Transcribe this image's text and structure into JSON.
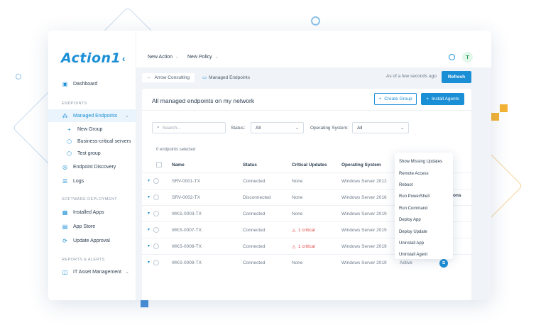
{
  "sidebar": {
    "logo": "Action1",
    "collapse_icon": "chevron-left-icon",
    "items": {
      "dashboard": "Dashboard",
      "section_endpoints": "ENDPOINTS",
      "managed": "Managed Endpoints",
      "new_group": "New Group",
      "business": "Business-critical servers",
      "test_group": "Test group",
      "discovery": "Endpoint Discovery",
      "logs": "Logs",
      "section_software": "SOFTWARE DEPLOYMENT",
      "installed": "Installed Apps",
      "store": "App Store",
      "approval": "Update Approval",
      "section_reports": "REPORTS & ALERTS",
      "asset": "IT Asset Management"
    }
  },
  "topbar": {
    "new_action": "New Action",
    "new_policy": "New Policy",
    "avatar_letter": "T"
  },
  "breadcrumb": {
    "back": "Arrow Consulting",
    "current": "Managed Endpoints"
  },
  "status": {
    "as_of": "As of a few seconds ago",
    "refresh": "Refresh"
  },
  "panel": {
    "title": "All managed endpoints on my network",
    "create_group": "Create Group",
    "install_agents": "Install Agents"
  },
  "filters": {
    "search_placeholder": "Search...",
    "status_label": "Status:",
    "status_value": "All",
    "os_label": "Operating System:",
    "os_value": "All",
    "selected_count": "0 endpoints selected"
  },
  "table": {
    "headers": {
      "name": "Name",
      "status": "Status",
      "updates": "Critical Updates",
      "os": "Operating System",
      "ons": "ons"
    },
    "rows": [
      {
        "name": "SRV-0001-TX",
        "status": "Connected",
        "updates": "None",
        "os": "Windows Server 2012"
      },
      {
        "name": "SRV-0002-TX",
        "status": "Disconnected",
        "updates": "None",
        "os": "Windows Server 2016"
      },
      {
        "name": "WKS-0003-TX",
        "status": "Connected",
        "updates": "None",
        "os": "Windows Server 2019"
      },
      {
        "name": "WKS-0007-TX",
        "status": "Connected",
        "updates": "1 critical",
        "os": "Windows Server 2019"
      },
      {
        "name": "WKS-0008-TX",
        "status": "Connected",
        "updates": "1 critical",
        "os": "Windows Server 2019"
      },
      {
        "name": "WKS-0009-TX",
        "status": "Connected",
        "updates": "None",
        "os": "Windows Server 2019"
      }
    ],
    "last_row_extra": "Active"
  },
  "context_menu": [
    "Show Missing Updates",
    "Remote Access",
    "Reboot",
    "Run PowerShell",
    "Run Command",
    "Deploy App",
    "Deploy Update",
    "Uninstall App",
    "Uninstall Agent"
  ],
  "colors": {
    "accent": "#1b8fd6",
    "critical": "#e24c4c",
    "deco_orange": "#f5b335",
    "deco_blue": "#4a90d9"
  }
}
